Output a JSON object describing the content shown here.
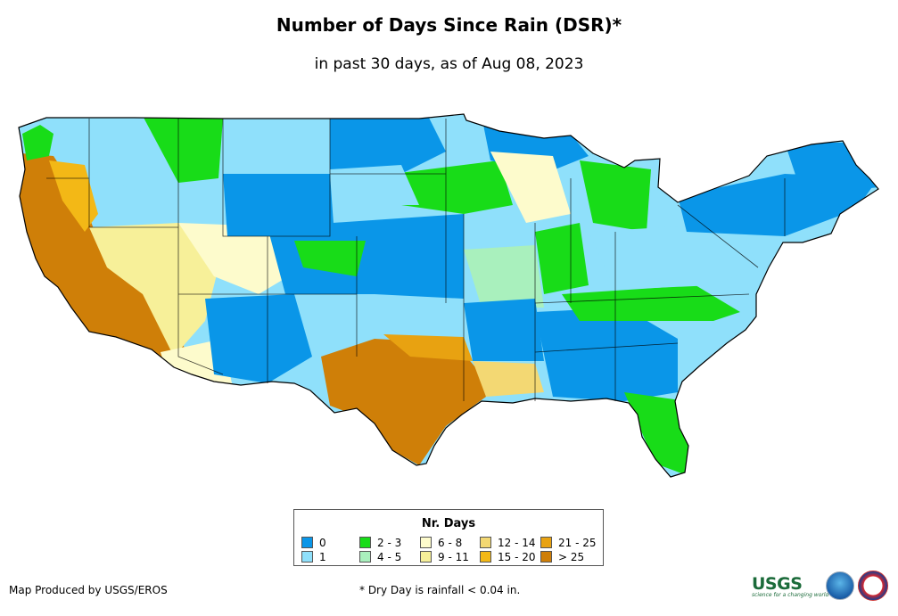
{
  "map": {
    "title": "Number of Days Since Rain (DSR)*",
    "subtitle": "in past 30 days, as of Aug 08, 2023",
    "region": "Contiguous United States",
    "legend": {
      "title": "Nr. Days",
      "items": [
        {
          "label": "0",
          "color": "#0a96e8"
        },
        {
          "label": "1",
          "color": "#8fe0fb"
        },
        {
          "label": "2 - 3",
          "color": "#18dc18"
        },
        {
          "label": "4 - 5",
          "color": "#a9f0bd"
        },
        {
          "label": "6 - 8",
          "color": "#fdfbcc"
        },
        {
          "label": "9 - 11",
          "color": "#f7f099"
        },
        {
          "label": "12 - 14",
          "color": "#f3d873"
        },
        {
          "label": "15 - 20",
          "color": "#f3b816"
        },
        {
          "label": "21 - 25",
          "color": "#e8a211"
        },
        {
          "label": "> 25",
          "color": "#cf7f08"
        }
      ]
    },
    "producer": "Map Produced by USGS/EROS",
    "footnote": "* Dry Day is rainfall < 0.04 in.",
    "logos": {
      "usgs": "USGS",
      "usgs_tagline": "science for a changing world"
    }
  }
}
